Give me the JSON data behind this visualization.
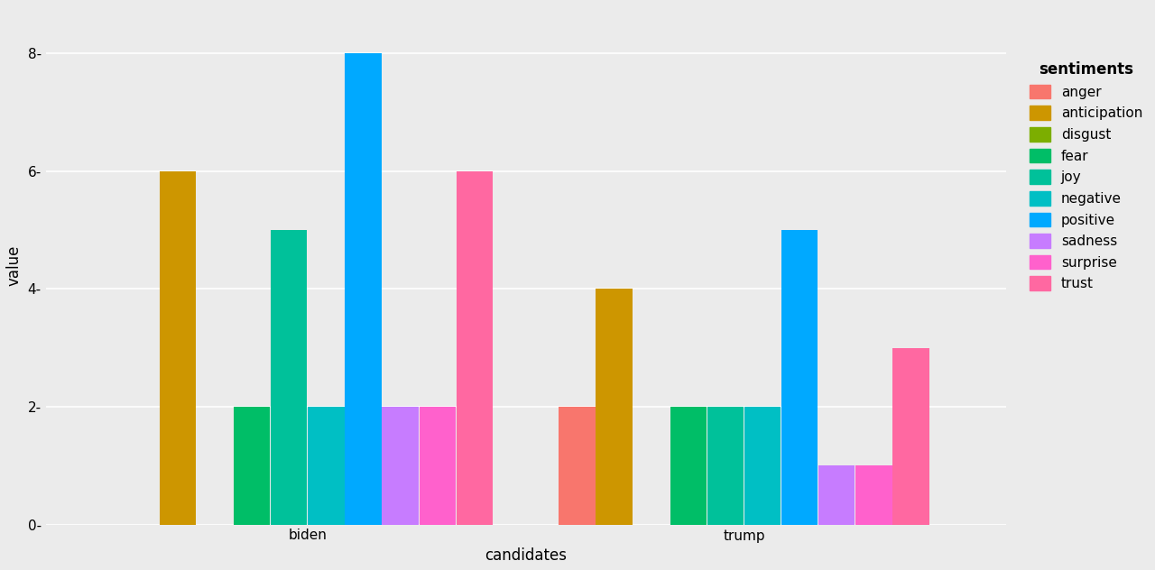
{
  "candidates": [
    "biden",
    "trump"
  ],
  "sentiments": [
    "anger",
    "anticipation",
    "disgust",
    "fear",
    "joy",
    "negative",
    "positive",
    "sadness",
    "surprise",
    "trust"
  ],
  "colors": {
    "anger": "#F8766D",
    "anticipation": "#CD9600",
    "disgust": "#7CAE00",
    "fear": "#00BE67",
    "joy": "#00C19A",
    "negative": "#00BFC4",
    "positive": "#00A9FF",
    "sadness": "#C77CFF",
    "surprise": "#FF61CC",
    "trust": "#FF68A1"
  },
  "values": {
    "biden": {
      "anger": 0,
      "anticipation": 6,
      "disgust": 0,
      "fear": 2,
      "joy": 5,
      "negative": 2,
      "positive": 8,
      "sadness": 2,
      "surprise": 2,
      "trust": 6
    },
    "trump": {
      "anger": 2,
      "anticipation": 4,
      "disgust": 0,
      "fear": 2,
      "joy": 2,
      "negative": 2,
      "positive": 5,
      "sadness": 1,
      "surprise": 1,
      "trust": 3
    }
  },
  "xlabel": "candidates",
  "ylabel": "value",
  "legend_title": "sentiments",
  "ylim": [
    0,
    8.8
  ],
  "yticks": [
    0,
    2,
    4,
    6,
    8
  ],
  "background_color": "#EBEBEB",
  "panel_color": "#EBEBEB",
  "grid_color": "#FFFFFF",
  "axis_fontsize": 12,
  "tick_fontsize": 11,
  "legend_fontsize": 11,
  "group_width": 0.85,
  "bar_padding": 0.02
}
